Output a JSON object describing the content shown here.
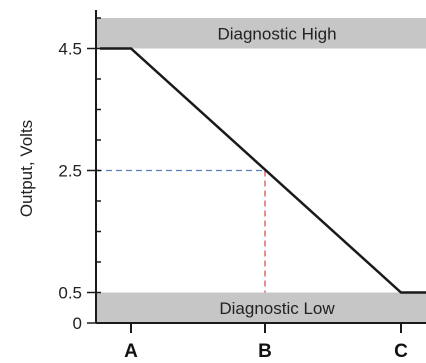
{
  "chart_data": {
    "type": "line",
    "title": "",
    "xlabel": "",
    "ylabel": "Output, Volts",
    "x_categories": [
      "A",
      "B",
      "C"
    ],
    "y_ticks": [
      {
        "value": 0,
        "label": "0"
      },
      {
        "value": 0.5,
        "label": "0.5"
      },
      {
        "value": 2.5,
        "label": "2.5"
      },
      {
        "value": 4.5,
        "label": "4.5"
      }
    ],
    "ylim": [
      0,
      5
    ],
    "bands": [
      {
        "name": "diagnostic-high",
        "label": "Diagnostic High",
        "from": 4.5,
        "to": 5.0
      },
      {
        "name": "diagnostic-low",
        "label": "Diagnostic Low",
        "from": 0.0,
        "to": 0.5
      }
    ],
    "series": [
      {
        "points": [
          {
            "x": "left-edge",
            "y": 4.5
          },
          {
            "x": "A",
            "y": 4.5
          },
          {
            "x": "C",
            "y": 0.5
          },
          {
            "x": "right-edge",
            "y": 0.5
          }
        ]
      }
    ],
    "reference": {
      "x": "B",
      "y": 2.5
    },
    "grid": false,
    "colors": {
      "line": "#1a1a1a",
      "band": "#c6c6c6",
      "ref_horizontal": "#5b7fb8",
      "ref_vertical": "#d9534f",
      "axis": "#1a1a1a"
    }
  }
}
